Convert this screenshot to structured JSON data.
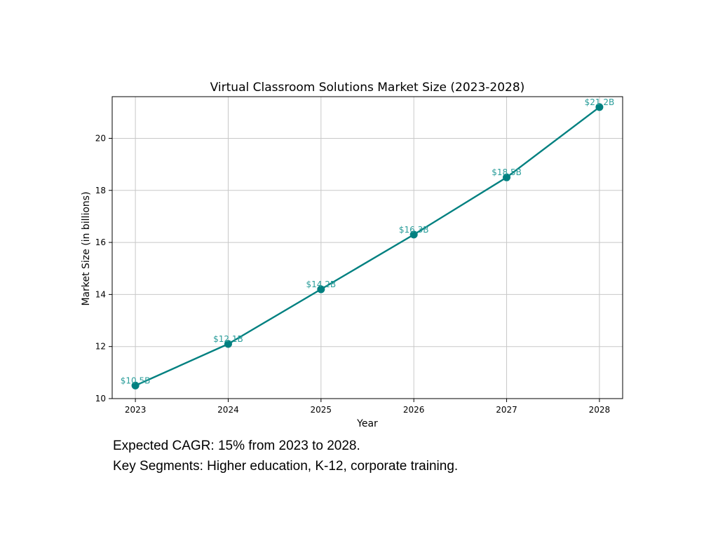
{
  "chart_data": {
    "type": "line",
    "title": "Virtual Classroom Solutions Market Size (2023-2028)",
    "xlabel": "Year",
    "ylabel": "Market Size (in billions)",
    "x": [
      "2023",
      "2024",
      "2025",
      "2026",
      "2027",
      "2028"
    ],
    "series": [
      {
        "values": [
          10.5,
          12.1,
          14.2,
          16.3,
          18.5,
          21.2
        ],
        "labels": [
          "$10.5B",
          "$12.1B",
          "$14.2B",
          "$16.3B",
          "$18.5B",
          "$21.2B"
        ]
      }
    ],
    "yticks": [
      10,
      12,
      14,
      16,
      18,
      20
    ],
    "ylim": [
      10,
      21.6
    ],
    "xlim": [
      2022.75,
      2028.25
    ],
    "grid": true,
    "colors": {
      "line": "#008080",
      "label": "#2a9d9a",
      "grid": "#c8c8c8"
    }
  },
  "notes": [
    "Expected CAGR: 15% from 2023 to 2028.",
    "Key Segments: Higher education, K-12, corporate training."
  ]
}
